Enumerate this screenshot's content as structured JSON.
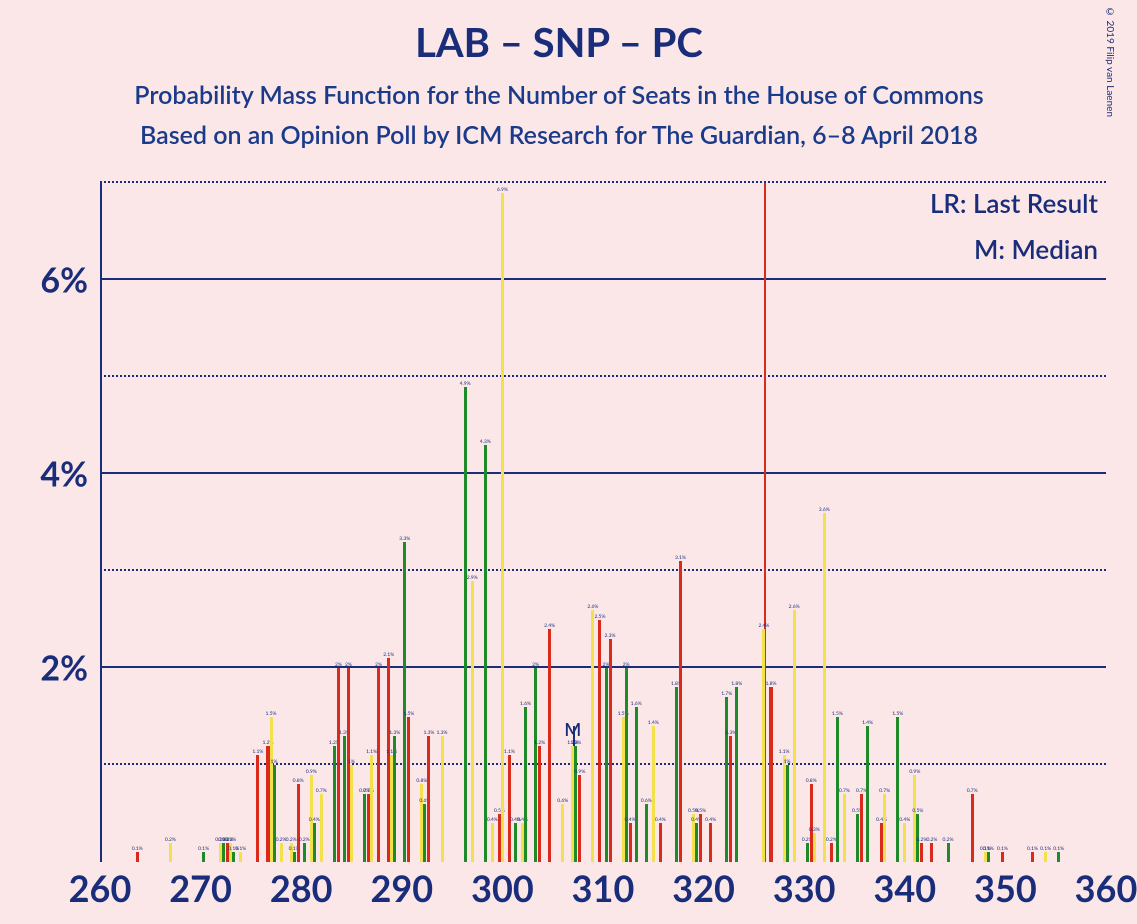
{
  "title": "LAB – SNP – PC",
  "subtitle1": "Probability Mass Function for the Number of Seats in the House of Commons",
  "subtitle2": "Based on an Opinion Poll by ICM Research for The Guardian, 6–8 April 2018",
  "legend": {
    "lr": "LR: Last Result",
    "m": "M: Median"
  },
  "copyright": "© 2019 Filip van Laenen",
  "chart": {
    "type": "bar-grouped",
    "background_color": "#fbe7e8",
    "text_color": "#1a2d7a",
    "xlim": [
      260,
      360
    ],
    "ylim": [
      0,
      7
    ],
    "ytick_major": [
      2,
      4,
      6
    ],
    "ytick_minor": [
      1,
      3,
      5,
      7
    ],
    "ytick_labels": [
      "2%",
      "4%",
      "6%"
    ],
    "xtick_major": [
      260,
      270,
      280,
      290,
      300,
      310,
      320,
      330,
      340,
      350,
      360
    ],
    "grid_major_color": "#1a2d7a",
    "grid_minor_color": "#1a2d7a",
    "series_colors": {
      "red": "#d92a1c",
      "yellow": "#f2e14b",
      "green": "#1f8a2a"
    },
    "marker_lines": [
      {
        "x": 326,
        "color": "#d92a1c",
        "label": null
      },
      {
        "x": 307,
        "color": "#1a2d7a",
        "label": "M",
        "short": true
      }
    ],
    "bar_group_width_ratio": 0.9,
    "series_order": [
      "red",
      "yellow",
      "green"
    ],
    "data": [
      {
        "x": 261,
        "red": 0.0,
        "yellow": 0.0,
        "green": 0.0
      },
      {
        "x": 262,
        "red": 0.0,
        "yellow": 0.0,
        "green": 0.0
      },
      {
        "x": 263,
        "red": 0.0,
        "yellow": 0.0,
        "green": 0.0
      },
      {
        "x": 264,
        "red": 0.1,
        "yellow": 0.0,
        "green": 0.0
      },
      {
        "x": 265,
        "red": 0.0,
        "yellow": 0.0,
        "green": 0.0
      },
      {
        "x": 266,
        "red": 0.0,
        "yellow": 0.0,
        "green": 0.0
      },
      {
        "x": 267,
        "red": 0.0,
        "yellow": 0.2,
        "green": 0.0
      },
      {
        "x": 268,
        "red": 0.0,
        "yellow": 0.0,
        "green": 0.0
      },
      {
        "x": 269,
        "red": 0.0,
        "yellow": 0.0,
        "green": 0.0
      },
      {
        "x": 270,
        "red": 0.0,
        "yellow": 0.0,
        "green": 0.1
      },
      {
        "x": 271,
        "red": 0.0,
        "yellow": 0.0,
        "green": 0.0
      },
      {
        "x": 272,
        "red": 0.0,
        "yellow": 0.2,
        "green": 0.2
      },
      {
        "x": 273,
        "red": 0.2,
        "yellow": 0.2,
        "green": 0.1
      },
      {
        "x": 274,
        "red": 0.0,
        "yellow": 0.1,
        "green": 0.0
      },
      {
        "x": 275,
        "red": 0.0,
        "yellow": 0.0,
        "green": 0.0
      },
      {
        "x": 276,
        "red": 1.1,
        "yellow": 0.0,
        "green": 0.0
      },
      {
        "x": 277,
        "red": 1.2,
        "yellow": 1.5,
        "green": 1.0
      },
      {
        "x": 278,
        "red": 0.0,
        "yellow": 0.2,
        "green": 0.0
      },
      {
        "x": 279,
        "red": 0.0,
        "yellow": 0.2,
        "green": 0.1
      },
      {
        "x": 280,
        "red": 0.8,
        "yellow": 0.0,
        "green": 0.2
      },
      {
        "x": 281,
        "red": 0.0,
        "yellow": 0.9,
        "green": 0.4
      },
      {
        "x": 282,
        "red": 0.0,
        "yellow": 0.7,
        "green": 0.0
      },
      {
        "x": 283,
        "red": 0.0,
        "yellow": 0.0,
        "green": 1.2
      },
      {
        "x": 284,
        "red": 2.0,
        "yellow": 0.0,
        "green": 1.3
      },
      {
        "x": 285,
        "red": 2.0,
        "yellow": 1.0,
        "green": 0.0
      },
      {
        "x": 286,
        "red": 0.0,
        "yellow": 0.0,
        "green": 0.7
      },
      {
        "x": 287,
        "red": 0.7,
        "yellow": 1.1,
        "green": 0.0
      },
      {
        "x": 288,
        "red": 2.0,
        "yellow": 0.0,
        "green": 0.0
      },
      {
        "x": 289,
        "red": 2.1,
        "yellow": 1.1,
        "green": 1.3
      },
      {
        "x": 290,
        "red": 0.0,
        "yellow": 0.0,
        "green": 3.3
      },
      {
        "x": 291,
        "red": 1.5,
        "yellow": 0.0,
        "green": 0.0
      },
      {
        "x": 292,
        "red": 0.0,
        "yellow": 0.8,
        "green": 0.6
      },
      {
        "x": 293,
        "red": 1.3,
        "yellow": 0.0,
        "green": 0.0
      },
      {
        "x": 294,
        "red": 0.0,
        "yellow": 1.3,
        "green": 0.0
      },
      {
        "x": 295,
        "red": 0.0,
        "yellow": 0.0,
        "green": 0.0
      },
      {
        "x": 296,
        "red": 0.0,
        "yellow": 0.0,
        "green": 4.9
      },
      {
        "x": 297,
        "red": 0.0,
        "yellow": 2.9,
        "green": 0.0
      },
      {
        "x": 298,
        "red": 0.0,
        "yellow": 0.0,
        "green": 4.3
      },
      {
        "x": 299,
        "red": 0.0,
        "yellow": 0.4,
        "green": 0.0
      },
      {
        "x": 300,
        "red": 0.5,
        "yellow": 6.9,
        "green": 0.0
      },
      {
        "x": 301,
        "red": 1.1,
        "yellow": 0.0,
        "green": 0.4
      },
      {
        "x": 302,
        "red": 0.0,
        "yellow": 0.4,
        "green": 1.6
      },
      {
        "x": 303,
        "red": 0.0,
        "yellow": 0.0,
        "green": 2.0
      },
      {
        "x": 304,
        "red": 1.2,
        "yellow": 0.0,
        "green": 0.0
      },
      {
        "x": 305,
        "red": 2.4,
        "yellow": 0.0,
        "green": 0.0
      },
      {
        "x": 306,
        "red": 0.0,
        "yellow": 0.6,
        "green": 0.0
      },
      {
        "x": 307,
        "red": 0.0,
        "yellow": 1.2,
        "green": 1.2
      },
      {
        "x": 308,
        "red": 0.9,
        "yellow": 0.0,
        "green": 0.0
      },
      {
        "x": 309,
        "red": 0.0,
        "yellow": 2.6,
        "green": 0.0
      },
      {
        "x": 310,
        "red": 2.5,
        "yellow": 0.0,
        "green": 2.0
      },
      {
        "x": 311,
        "red": 2.3,
        "yellow": 0.0,
        "green": 0.0
      },
      {
        "x": 312,
        "red": 0.0,
        "yellow": 1.5,
        "green": 2.0
      },
      {
        "x": 313,
        "red": 0.4,
        "yellow": 0.0,
        "green": 1.6
      },
      {
        "x": 314,
        "red": 0.0,
        "yellow": 0.0,
        "green": 0.6
      },
      {
        "x": 315,
        "red": 0.0,
        "yellow": 1.4,
        "green": 0.0
      },
      {
        "x": 316,
        "red": 0.4,
        "yellow": 0.0,
        "green": 0.0
      },
      {
        "x": 317,
        "red": 0.0,
        "yellow": 0.0,
        "green": 1.8
      },
      {
        "x": 318,
        "red": 3.1,
        "yellow": 0.0,
        "green": 0.0
      },
      {
        "x": 319,
        "red": 0.0,
        "yellow": 0.5,
        "green": 0.4
      },
      {
        "x": 320,
        "red": 0.5,
        "yellow": 0.0,
        "green": 0.0
      },
      {
        "x": 321,
        "red": 0.4,
        "yellow": 0.0,
        "green": 0.0
      },
      {
        "x": 322,
        "red": 0.0,
        "yellow": 0.0,
        "green": 1.7
      },
      {
        "x": 323,
        "red": 1.3,
        "yellow": 0.0,
        "green": 1.8
      },
      {
        "x": 324,
        "red": 0.0,
        "yellow": 0.0,
        "green": 0.0
      },
      {
        "x": 325,
        "red": 0.0,
        "yellow": 0.0,
        "green": 0.0
      },
      {
        "x": 326,
        "red": 0.0,
        "yellow": 2.4,
        "green": 0.0
      },
      {
        "x": 327,
        "red": 1.8,
        "yellow": 0.0,
        "green": 0.0
      },
      {
        "x": 328,
        "red": 0.0,
        "yellow": 1.1,
        "green": 1.0
      },
      {
        "x": 329,
        "red": 0.0,
        "yellow": 2.6,
        "green": 0.0
      },
      {
        "x": 330,
        "red": 0.0,
        "yellow": 0.0,
        "green": 0.2
      },
      {
        "x": 331,
        "red": 0.8,
        "yellow": 0.3,
        "green": 0.0
      },
      {
        "x": 332,
        "red": 0.0,
        "yellow": 3.6,
        "green": 0.0
      },
      {
        "x": 333,
        "red": 0.2,
        "yellow": 0.0,
        "green": 1.5
      },
      {
        "x": 334,
        "red": 0.0,
        "yellow": 0.7,
        "green": 0.0
      },
      {
        "x": 335,
        "red": 0.0,
        "yellow": 0.0,
        "green": 0.5
      },
      {
        "x": 336,
        "red": 0.7,
        "yellow": 0.0,
        "green": 1.4
      },
      {
        "x": 337,
        "red": 0.0,
        "yellow": 0.0,
        "green": 0.0
      },
      {
        "x": 338,
        "red": 0.4,
        "yellow": 0.7,
        "green": 0.0
      },
      {
        "x": 339,
        "red": 0.0,
        "yellow": 0.0,
        "green": 1.5
      },
      {
        "x": 340,
        "red": 0.0,
        "yellow": 0.4,
        "green": 0.0
      },
      {
        "x": 341,
        "red": 0.0,
        "yellow": 0.9,
        "green": 0.5
      },
      {
        "x": 342,
        "red": 0.2,
        "yellow": 0.0,
        "green": 0.0
      },
      {
        "x": 343,
        "red": 0.2,
        "yellow": 0.0,
        "green": 0.0
      },
      {
        "x": 344,
        "red": 0.0,
        "yellow": 0.0,
        "green": 0.2
      },
      {
        "x": 345,
        "red": 0.0,
        "yellow": 0.0,
        "green": 0.0
      },
      {
        "x": 346,
        "red": 0.0,
        "yellow": 0.0,
        "green": 0.0
      },
      {
        "x": 347,
        "red": 0.7,
        "yellow": 0.0,
        "green": 0.0
      },
      {
        "x": 348,
        "red": 0.0,
        "yellow": 0.1,
        "green": 0.1
      },
      {
        "x": 349,
        "red": 0.0,
        "yellow": 0.0,
        "green": 0.0
      },
      {
        "x": 350,
        "red": 0.1,
        "yellow": 0.0,
        "green": 0.0
      },
      {
        "x": 351,
        "red": 0.0,
        "yellow": 0.0,
        "green": 0.0
      },
      {
        "x": 352,
        "red": 0.0,
        "yellow": 0.0,
        "green": 0.0
      },
      {
        "x": 353,
        "red": 0.1,
        "yellow": 0.0,
        "green": 0.0
      },
      {
        "x": 354,
        "red": 0.0,
        "yellow": 0.1,
        "green": 0.0
      },
      {
        "x": 355,
        "red": 0.0,
        "yellow": 0.0,
        "green": 0.1
      },
      {
        "x": 356,
        "red": 0.0,
        "yellow": 0.0,
        "green": 0.0
      },
      {
        "x": 357,
        "red": 0.0,
        "yellow": 0.0,
        "green": 0.0
      },
      {
        "x": 358,
        "red": 0.0,
        "yellow": 0.0,
        "green": 0.0
      }
    ]
  }
}
